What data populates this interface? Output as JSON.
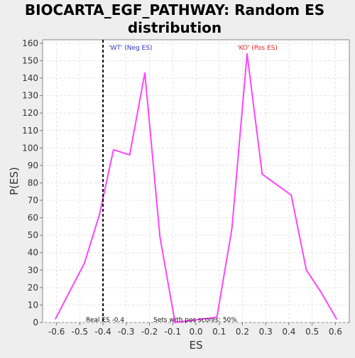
{
  "chart_data": {
    "type": "line",
    "title": "BIOCARTA_EGF_PATHWAY: Random ES distribution",
    "title_lines": [
      "BIOCARTA_EGF_PATHWAY: Random ES",
      "distribution"
    ],
    "xlabel": "ES",
    "ylabel": "P(ES)",
    "xlim": [
      -0.66,
      0.66
    ],
    "ylim": [
      0,
      162
    ],
    "xticks": [
      -0.6,
      -0.5,
      -0.4,
      -0.3,
      -0.2,
      -0.1,
      0.0,
      0.1,
      0.2,
      0.3,
      0.4,
      0.5,
      0.6
    ],
    "xtick_labels": [
      "-0.6",
      "-0.5",
      "-0.4",
      "-0.3",
      "-0.2",
      "-0.1",
      "0.0",
      "0.1",
      "0.2",
      "0.3",
      "0.4",
      "0.5",
      "0.6"
    ],
    "yticks": [
      0,
      10,
      20,
      30,
      40,
      50,
      60,
      70,
      80,
      90,
      100,
      110,
      120,
      130,
      140,
      150,
      160
    ],
    "ytick_labels": [
      "0",
      "10",
      "20",
      "30",
      "40",
      "50",
      "60",
      "70",
      "80",
      "90",
      "100",
      "110",
      "120",
      "130",
      "140",
      "150",
      "160"
    ],
    "grid": true,
    "series": [
      {
        "color": "#ff44ff",
        "x": [
          -0.605,
          -0.48,
          -0.415,
          -0.355,
          -0.285,
          -0.22,
          -0.155,
          -0.09,
          0.09,
          0.155,
          0.22,
          0.285,
          0.41,
          0.475,
          0.54,
          0.605
        ],
        "y": [
          2,
          34,
          62,
          99,
          96,
          143,
          49,
          0,
          3,
          54,
          154,
          85,
          73,
          30,
          17,
          2
        ]
      }
    ],
    "real_es": -0.4,
    "real_es_color": "#000000",
    "annotations": {
      "neg_label": "'WT' (Neg ES)",
      "neg_color": "#3333cc",
      "pos_label": "'KO' (Pos ES)",
      "pos_color": "#ee2222",
      "real_es_label": "Real ES -0.4",
      "sets_label": "Sets with pos scores: 50%"
    }
  }
}
